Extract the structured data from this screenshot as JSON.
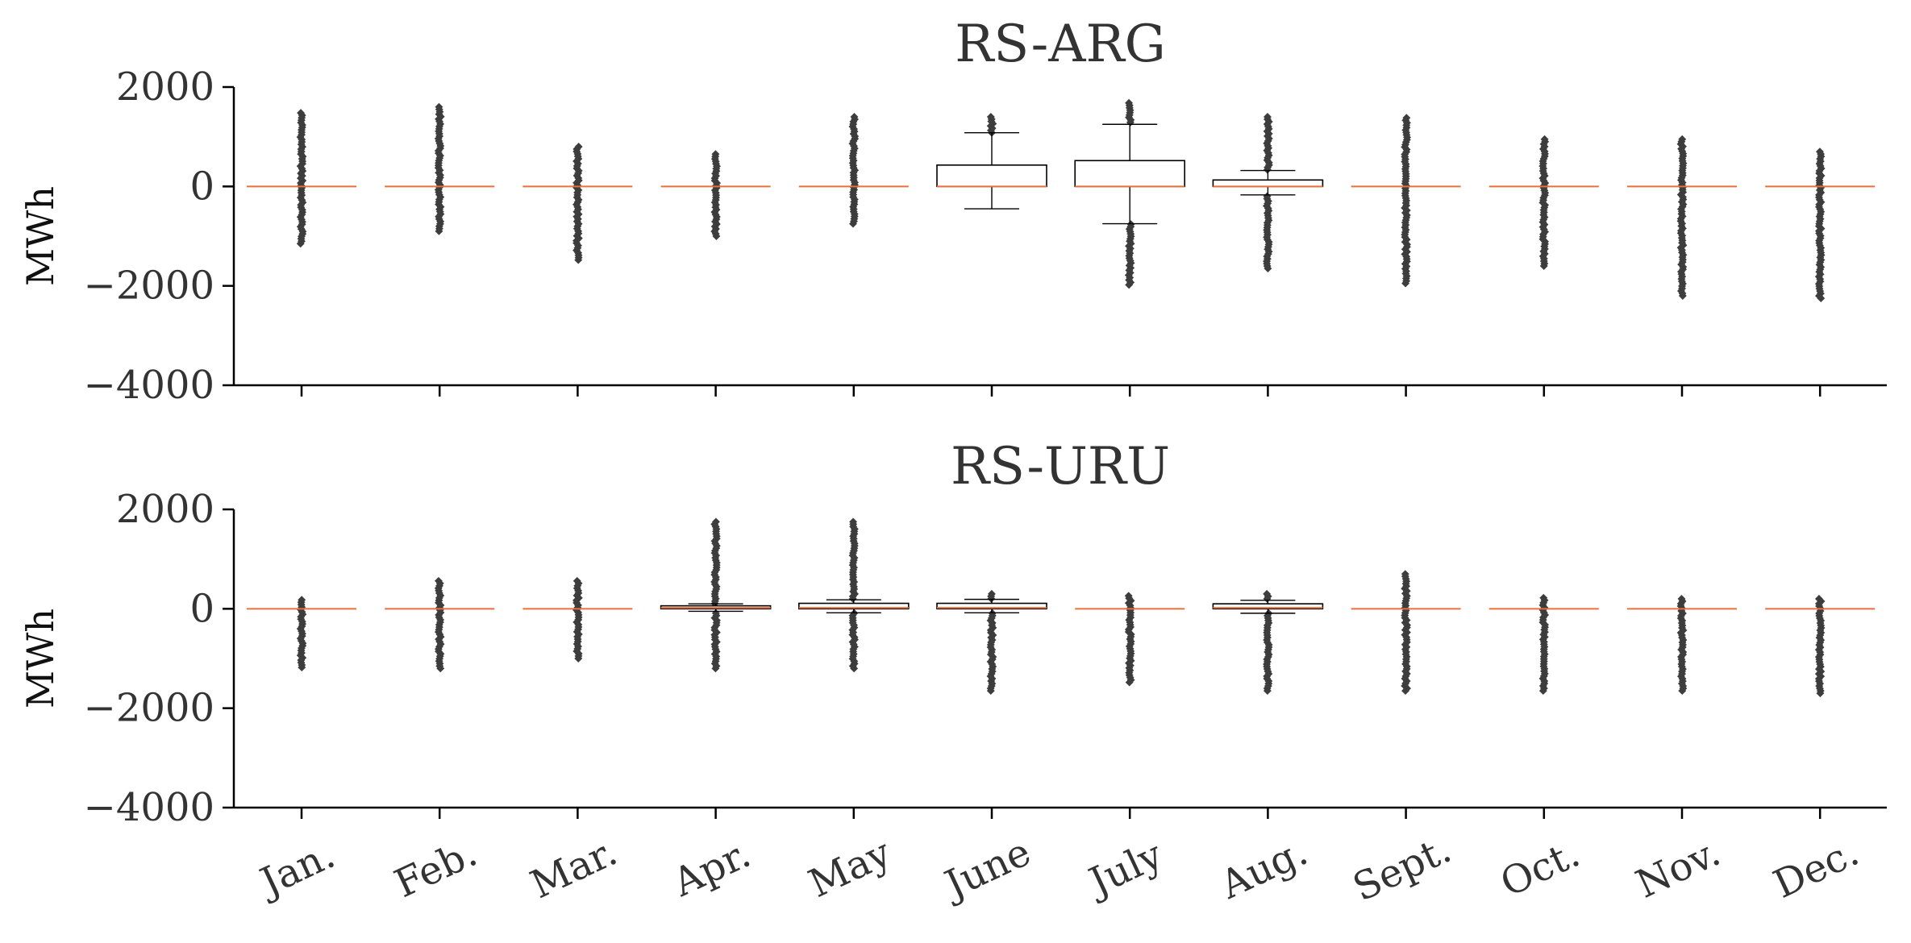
{
  "chart_data": [
    {
      "type": "box",
      "title": "RS-ARG",
      "ylabel": "MWh",
      "ylim": [
        -4000,
        2000
      ],
      "yticks": [
        2000,
        0,
        -2000,
        -4000
      ],
      "ytick_labels": [
        "2000",
        "0",
        "−2000",
        "−4000"
      ],
      "categories": [
        "Jan.",
        "Feb.",
        "Mar.",
        "Apr.",
        "May",
        "June",
        "July",
        "Aug.",
        "Sept.",
        "Oct.",
        "Nov.",
        "Dec."
      ],
      "show_xtick_labels": false,
      "boxes": [
        {
          "q1": 0,
          "median": 0,
          "q3": 0,
          "whislo": 0,
          "whishi": 0,
          "flier_min": -1150,
          "flier_max": 1480
        },
        {
          "q1": 0,
          "median": 0,
          "q3": 0,
          "whislo": 0,
          "whishi": 0,
          "flier_min": -900,
          "flier_max": 1600
        },
        {
          "q1": 0,
          "median": 0,
          "q3": 0,
          "whislo": 0,
          "whishi": 0,
          "flier_min": -1480,
          "flier_max": 800
        },
        {
          "q1": 0,
          "median": 0,
          "q3": 0,
          "whislo": 0,
          "whishi": 0,
          "flier_min": -1000,
          "flier_max": 650
        },
        {
          "q1": 0,
          "median": 0,
          "q3": 0,
          "whislo": 0,
          "whishi": 0,
          "flier_min": -750,
          "flier_max": 1400
        },
        {
          "q1": 0,
          "median": 0,
          "q3": 430,
          "whislo": -450,
          "whishi": 1080,
          "flier_min": 1080,
          "flier_max": 1400
        },
        {
          "q1": 0,
          "median": 0,
          "q3": 520,
          "whislo": -750,
          "whishi": 1250,
          "flier_min": -1980,
          "flier_max": 1680
        },
        {
          "q1": 0,
          "median": 0,
          "q3": 130,
          "whislo": -170,
          "whishi": 320,
          "flier_min": -1650,
          "flier_max": 1400
        },
        {
          "q1": 0,
          "median": 0,
          "q3": 0,
          "whislo": 0,
          "whishi": 0,
          "flier_min": -1950,
          "flier_max": 1380
        },
        {
          "q1": 0,
          "median": 0,
          "q3": 0,
          "whislo": 0,
          "whishi": 0,
          "flier_min": -1600,
          "flier_max": 950
        },
        {
          "q1": 0,
          "median": 0,
          "q3": 0,
          "whislo": 0,
          "whishi": 0,
          "flier_min": -2200,
          "flier_max": 950
        },
        {
          "q1": 0,
          "median": 0,
          "q3": 0,
          "whislo": 0,
          "whishi": 0,
          "flier_min": -2250,
          "flier_max": 700
        }
      ]
    },
    {
      "type": "box",
      "title": "RS-URU",
      "ylabel": "MWh",
      "ylim": [
        -4000,
        2000
      ],
      "yticks": [
        2000,
        0,
        -2000,
        -4000
      ],
      "ytick_labels": [
        "2000",
        "0",
        "−2000",
        "−4000"
      ],
      "categories": [
        "Jan.",
        "Feb.",
        "Mar.",
        "Apr.",
        "May",
        "June",
        "July",
        "Aug.",
        "Sept.",
        "Oct.",
        "Nov.",
        "Dec."
      ],
      "show_xtick_labels": true,
      "boxes": [
        {
          "q1": 0,
          "median": 0,
          "q3": 0,
          "whislo": 0,
          "whishi": 0,
          "flier_min": -1180,
          "flier_max": 180
        },
        {
          "q1": 0,
          "median": 0,
          "q3": 0,
          "whislo": 0,
          "whishi": 0,
          "flier_min": -1200,
          "flier_max": 560
        },
        {
          "q1": 0,
          "median": 0,
          "q3": 0,
          "whislo": 0,
          "whishi": 0,
          "flier_min": -1000,
          "flier_max": 560
        },
        {
          "q1": 0,
          "median": 20,
          "q3": 60,
          "whislo": -50,
          "whishi": 100,
          "flier_min": -1200,
          "flier_max": 1750
        },
        {
          "q1": 0,
          "median": 20,
          "q3": 110,
          "whislo": -80,
          "whishi": 180,
          "flier_min": -1200,
          "flier_max": 1750
        },
        {
          "q1": 0,
          "median": 20,
          "q3": 110,
          "whislo": -80,
          "whishi": 190,
          "flier_min": -1650,
          "flier_max": 300
        },
        {
          "q1": 0,
          "median": 0,
          "q3": 0,
          "whislo": 0,
          "whishi": 0,
          "flier_min": -1480,
          "flier_max": 260
        },
        {
          "q1": 0,
          "median": 20,
          "q3": 100,
          "whislo": -90,
          "whishi": 170,
          "flier_min": -1650,
          "flier_max": 300
        },
        {
          "q1": 0,
          "median": 0,
          "q3": 0,
          "whislo": 0,
          "whishi": 0,
          "flier_min": -1650,
          "flier_max": 700
        },
        {
          "q1": 0,
          "median": 0,
          "q3": 0,
          "whislo": 0,
          "whishi": 0,
          "flier_min": -1650,
          "flier_max": 220
        },
        {
          "q1": 0,
          "median": 0,
          "q3": 0,
          "whislo": 0,
          "whishi": 0,
          "flier_min": -1650,
          "flier_max": 200
        },
        {
          "q1": 0,
          "median": 0,
          "q3": 0,
          "whislo": 0,
          "whishi": 0,
          "flier_min": -1700,
          "flier_max": 200
        }
      ]
    }
  ],
  "colors": {
    "median": "#e8703a",
    "box_edge": "#000000",
    "flier": "#3d3d3d",
    "text": "#333333"
  }
}
